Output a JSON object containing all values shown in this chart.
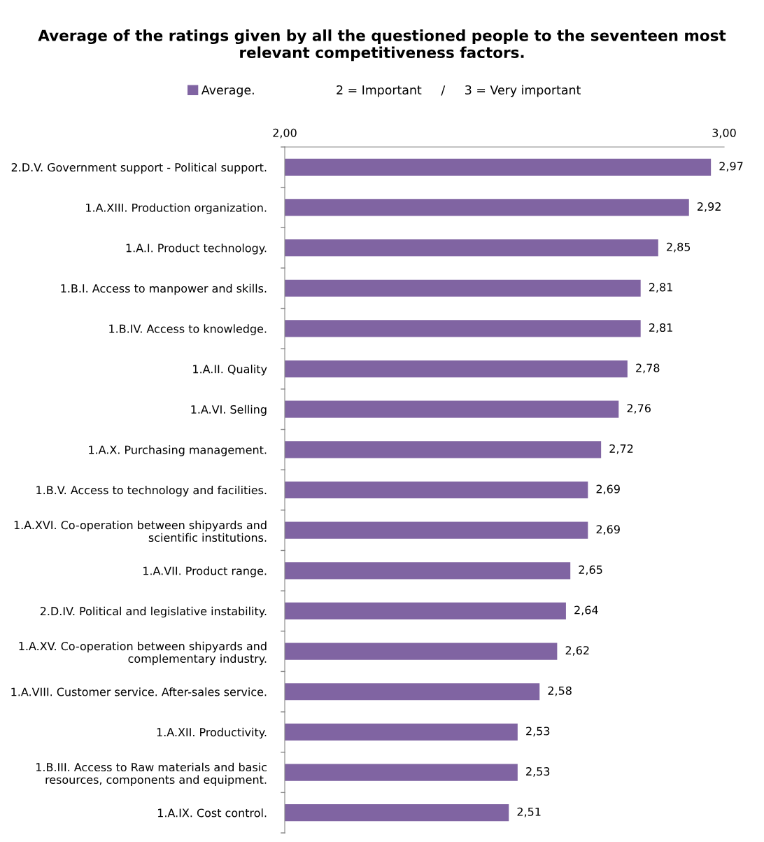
{
  "chart_data": {
    "type": "bar",
    "orientation": "horizontal",
    "title": "Average of the ratings given by all the questioned people to the seventeen most relevant competitiveness factors.",
    "annotations": [
      "2 = Important     /     3 = Very important"
    ],
    "categories": [
      "2.D.V. Government support - Political support.",
      "1.A.XIII. Production organization.",
      "1.A.I. Product technology.",
      "1.B.I. Access to manpower and skills.",
      "1.B.IV. Access to knowledge.",
      "1.A.II. Quality",
      "1.A.VI. Selling",
      "1.A.X. Purchasing management.",
      "1.B.V. Access to technology and facilities.",
      "1.A.XVI. Co-operation between shipyards and scientific institutions.",
      "1.A.VII. Product range.",
      "2.D.IV. Political and legislative instability.",
      "1.A.XV. Co-operation between shipyards and complementary industry.",
      "1.A.VIII. Customer service. After-sales service.",
      "1.A.XII. Productivity.",
      "1.B.III. Access to Raw materials and basic resources, components and equipment.",
      "1.A.IX. Cost control."
    ],
    "series": [
      {
        "name": "Average.",
        "color": "#8064a2",
        "values": [
          2.97,
          2.92,
          2.85,
          2.81,
          2.81,
          2.78,
          2.76,
          2.72,
          2.69,
          2.69,
          2.65,
          2.64,
          2.62,
          2.58,
          2.53,
          2.53,
          2.51
        ],
        "value_labels": [
          "2,97",
          "2,92",
          "2,85",
          "2,81",
          "2,81",
          "2,78",
          "2,76",
          "2,72",
          "2,69",
          "2,69",
          "2,65",
          "2,64",
          "2,62",
          "2,58",
          "2,53",
          "2,53",
          "2,51"
        ]
      }
    ],
    "xlim": [
      2,
      3
    ],
    "xticks": [
      {
        "value": 2,
        "label": "2,00"
      },
      {
        "value": 3,
        "label": "3,00"
      }
    ],
    "grid": false,
    "legend": "top"
  }
}
